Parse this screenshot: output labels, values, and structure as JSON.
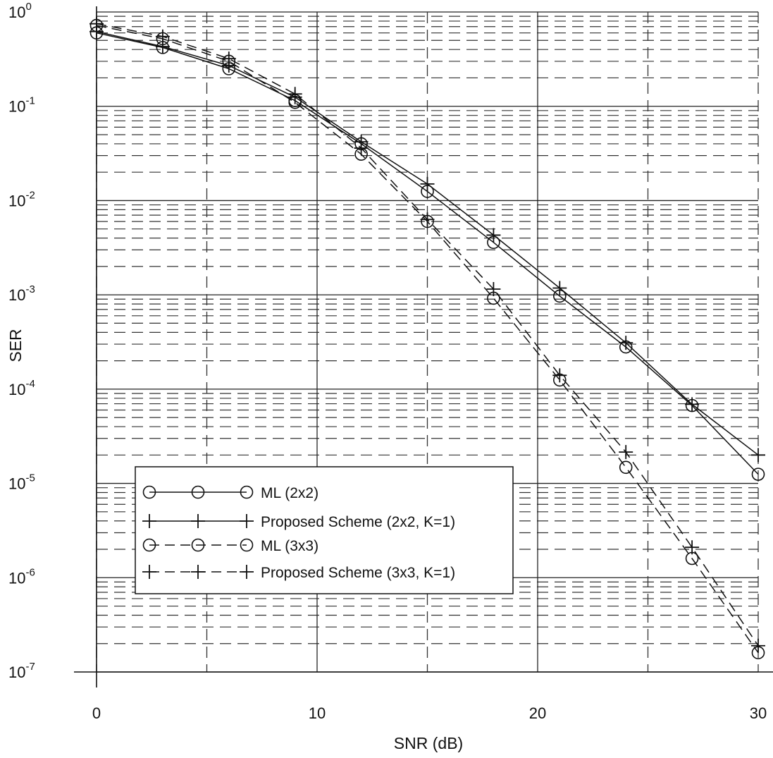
{
  "chart_data": {
    "type": "line",
    "xlabel": "SNR (dB)",
    "ylabel": "SER",
    "xlim": [
      0,
      30
    ],
    "ylim": [
      1e-07,
      1
    ],
    "yscale": "log",
    "x_ticks": [
      0,
      10,
      20,
      30
    ],
    "y_ticks": [
      {
        "base": "10",
        "exp": "0"
      },
      {
        "base": "10",
        "exp": "-1"
      },
      {
        "base": "10",
        "exp": "-2"
      },
      {
        "base": "10",
        "exp": "-3"
      },
      {
        "base": "10",
        "exp": "-4"
      },
      {
        "base": "10",
        "exp": "-5"
      },
      {
        "base": "10",
        "exp": "-6"
      },
      {
        "base": "10",
        "exp": "-7"
      }
    ],
    "grid": true,
    "legend_position": "lower-left",
    "x": [
      0,
      3,
      6,
      9,
      12,
      15,
      18,
      21,
      24,
      27,
      30
    ],
    "series": [
      {
        "name": "ML (2x2)",
        "marker": "circle",
        "line": "solid",
        "values": [
          0.6,
          0.42,
          0.25,
          0.115,
          0.04,
          0.0125,
          0.0036,
          0.00097,
          0.00028,
          6.7e-05,
          1.25e-05
        ]
      },
      {
        "name": "Proposed Scheme (2x2, K=1)",
        "marker": "plus",
        "line": "solid",
        "values": [
          0.62,
          0.43,
          0.27,
          0.125,
          0.042,
          0.015,
          0.0043,
          0.00118,
          0.00031,
          6.9e-05,
          2e-05
        ]
      },
      {
        "name": "ML (3x3)",
        "marker": "circle",
        "line": "dashed",
        "values": [
          0.72,
          0.52,
          0.3,
          0.11,
          0.031,
          0.006,
          0.00092,
          0.000125,
          1.48e-05,
          1.6e-06,
          1.6e-07
        ]
      },
      {
        "name": "Proposed Scheme (3x3, K=1)",
        "marker": "plus",
        "line": "dashed",
        "values": [
          0.75,
          0.55,
          0.32,
          0.135,
          0.036,
          0.0063,
          0.00115,
          0.00014,
          2.15e-05,
          2.1e-06,
          1.9e-07
        ]
      }
    ]
  }
}
